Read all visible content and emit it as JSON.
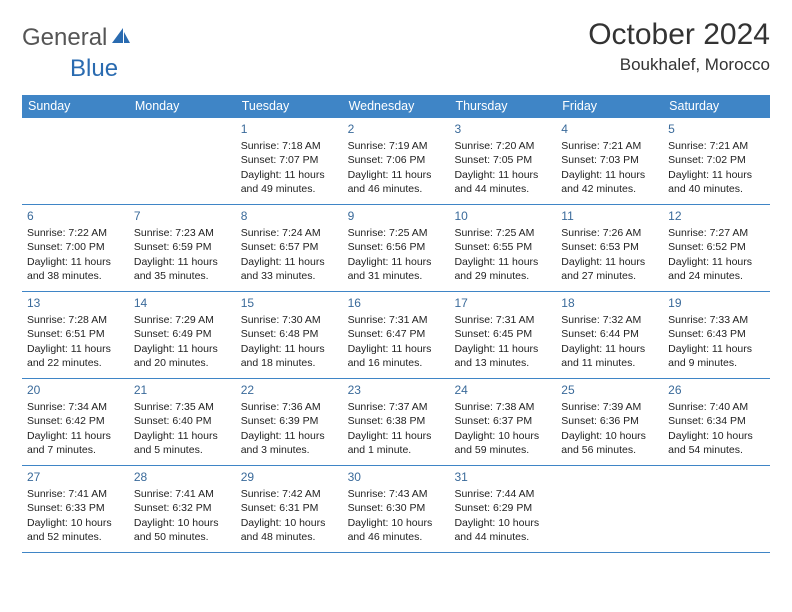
{
  "brand": {
    "general": "General",
    "blue": "Blue"
  },
  "title": "October 2024",
  "location": "Boukhalef, Morocco",
  "colors": {
    "header_bg": "#3f85c6",
    "header_text": "#ffffff",
    "day_num": "#3a6a9a",
    "rule": "#3f85c6",
    "page_bg": "#ffffff"
  },
  "weekdays": [
    "Sunday",
    "Monday",
    "Tuesday",
    "Wednesday",
    "Thursday",
    "Friday",
    "Saturday"
  ],
  "leading_blanks": 2,
  "days": [
    {
      "n": "1",
      "sunrise": "7:18 AM",
      "sunset": "7:07 PM",
      "daylight": "11 hours and 49 minutes."
    },
    {
      "n": "2",
      "sunrise": "7:19 AM",
      "sunset": "7:06 PM",
      "daylight": "11 hours and 46 minutes."
    },
    {
      "n": "3",
      "sunrise": "7:20 AM",
      "sunset": "7:05 PM",
      "daylight": "11 hours and 44 minutes."
    },
    {
      "n": "4",
      "sunrise": "7:21 AM",
      "sunset": "7:03 PM",
      "daylight": "11 hours and 42 minutes."
    },
    {
      "n": "5",
      "sunrise": "7:21 AM",
      "sunset": "7:02 PM",
      "daylight": "11 hours and 40 minutes."
    },
    {
      "n": "6",
      "sunrise": "7:22 AM",
      "sunset": "7:00 PM",
      "daylight": "11 hours and 38 minutes."
    },
    {
      "n": "7",
      "sunrise": "7:23 AM",
      "sunset": "6:59 PM",
      "daylight": "11 hours and 35 minutes."
    },
    {
      "n": "8",
      "sunrise": "7:24 AM",
      "sunset": "6:57 PM",
      "daylight": "11 hours and 33 minutes."
    },
    {
      "n": "9",
      "sunrise": "7:25 AM",
      "sunset": "6:56 PM",
      "daylight": "11 hours and 31 minutes."
    },
    {
      "n": "10",
      "sunrise": "7:25 AM",
      "sunset": "6:55 PM",
      "daylight": "11 hours and 29 minutes."
    },
    {
      "n": "11",
      "sunrise": "7:26 AM",
      "sunset": "6:53 PM",
      "daylight": "11 hours and 27 minutes."
    },
    {
      "n": "12",
      "sunrise": "7:27 AM",
      "sunset": "6:52 PM",
      "daylight": "11 hours and 24 minutes."
    },
    {
      "n": "13",
      "sunrise": "7:28 AM",
      "sunset": "6:51 PM",
      "daylight": "11 hours and 22 minutes."
    },
    {
      "n": "14",
      "sunrise": "7:29 AM",
      "sunset": "6:49 PM",
      "daylight": "11 hours and 20 minutes."
    },
    {
      "n": "15",
      "sunrise": "7:30 AM",
      "sunset": "6:48 PM",
      "daylight": "11 hours and 18 minutes."
    },
    {
      "n": "16",
      "sunrise": "7:31 AM",
      "sunset": "6:47 PM",
      "daylight": "11 hours and 16 minutes."
    },
    {
      "n": "17",
      "sunrise": "7:31 AM",
      "sunset": "6:45 PM",
      "daylight": "11 hours and 13 minutes."
    },
    {
      "n": "18",
      "sunrise": "7:32 AM",
      "sunset": "6:44 PM",
      "daylight": "11 hours and 11 minutes."
    },
    {
      "n": "19",
      "sunrise": "7:33 AM",
      "sunset": "6:43 PM",
      "daylight": "11 hours and 9 minutes."
    },
    {
      "n": "20",
      "sunrise": "7:34 AM",
      "sunset": "6:42 PM",
      "daylight": "11 hours and 7 minutes."
    },
    {
      "n": "21",
      "sunrise": "7:35 AM",
      "sunset": "6:40 PM",
      "daylight": "11 hours and 5 minutes."
    },
    {
      "n": "22",
      "sunrise": "7:36 AM",
      "sunset": "6:39 PM",
      "daylight": "11 hours and 3 minutes."
    },
    {
      "n": "23",
      "sunrise": "7:37 AM",
      "sunset": "6:38 PM",
      "daylight": "11 hours and 1 minute."
    },
    {
      "n": "24",
      "sunrise": "7:38 AM",
      "sunset": "6:37 PM",
      "daylight": "10 hours and 59 minutes."
    },
    {
      "n": "25",
      "sunrise": "7:39 AM",
      "sunset": "6:36 PM",
      "daylight": "10 hours and 56 minutes."
    },
    {
      "n": "26",
      "sunrise": "7:40 AM",
      "sunset": "6:34 PM",
      "daylight": "10 hours and 54 minutes."
    },
    {
      "n": "27",
      "sunrise": "7:41 AM",
      "sunset": "6:33 PM",
      "daylight": "10 hours and 52 minutes."
    },
    {
      "n": "28",
      "sunrise": "7:41 AM",
      "sunset": "6:32 PM",
      "daylight": "10 hours and 50 minutes."
    },
    {
      "n": "29",
      "sunrise": "7:42 AM",
      "sunset": "6:31 PM",
      "daylight": "10 hours and 48 minutes."
    },
    {
      "n": "30",
      "sunrise": "7:43 AM",
      "sunset": "6:30 PM",
      "daylight": "10 hours and 46 minutes."
    },
    {
      "n": "31",
      "sunrise": "7:44 AM",
      "sunset": "6:29 PM",
      "daylight": "10 hours and 44 minutes."
    }
  ],
  "labels": {
    "sunrise": "Sunrise: ",
    "sunset": "Sunset: ",
    "daylight": "Daylight: "
  }
}
